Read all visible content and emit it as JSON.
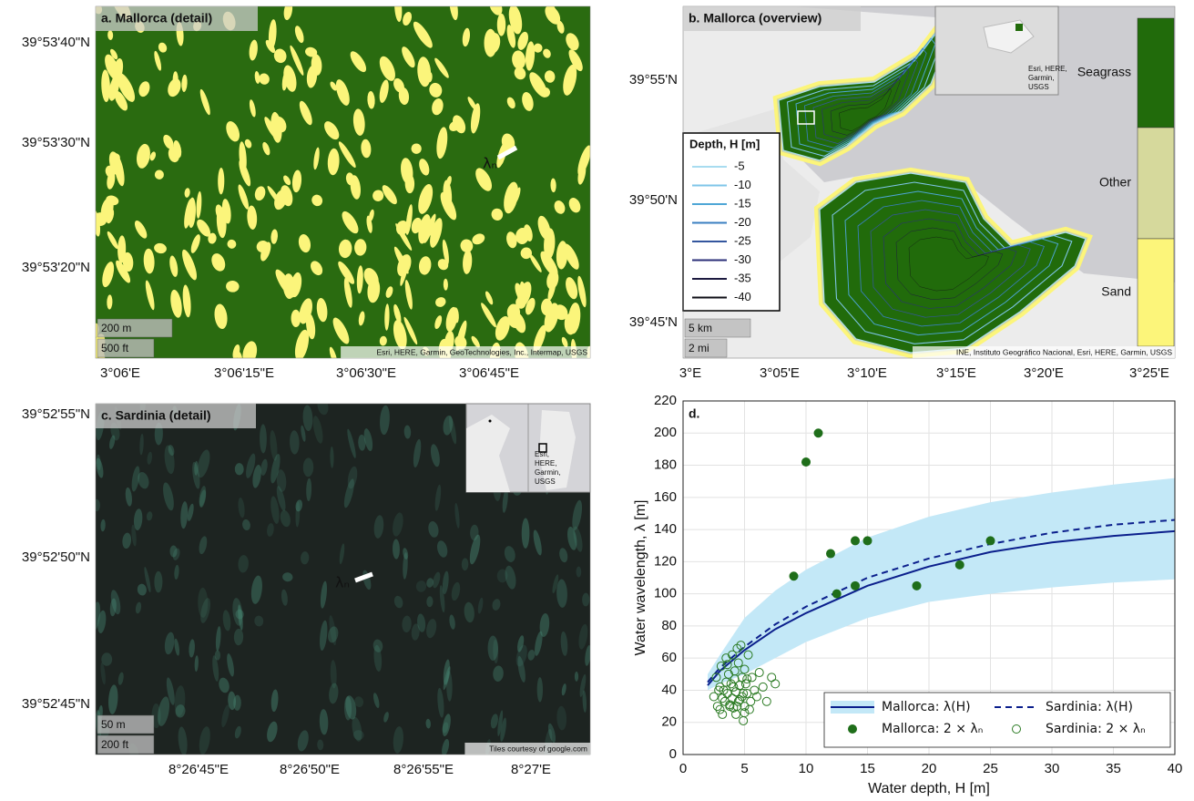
{
  "maps": [
    {
      "title": "a. Mallorca (detail)",
      "lat_labels": [
        "39°53'40\"N",
        "39°53'30\"N",
        "39°53'20\"N"
      ],
      "lon_labels": [
        "3°06'E",
        "3°06'15\"E",
        "3°06'30\"E",
        "3°06'45\"E"
      ],
      "scale_bar": [
        "200 m",
        "500 ft"
      ],
      "attribution": "Esri, HERE, Garmin, GeoTechnologies, Inc., Intermap, USGS",
      "marker": "λₙ"
    },
    {
      "title": "b. Mallorca (overview)",
      "lat_labels": [
        "39°55'N",
        "39°50'N",
        "39°45'N"
      ],
      "lon_labels": [
        "3°E",
        "3°05'E",
        "3°10'E",
        "3°15'E",
        "3°20'E",
        "3°25'E"
      ],
      "scale_bar": [
        "5 km",
        "2 mi"
      ],
      "attribution": "INE, Instituto Geográfico Nacional, Esri, HERE, Garmin, USGS",
      "inset_attribution": [
        "Esri, HERE,",
        "Garmin,",
        "USGS"
      ],
      "depth_legend": {
        "title": "Depth, H [m]",
        "levels": [
          -5,
          -10,
          -15,
          -20,
          -25,
          -30,
          -35,
          -40
        ],
        "colors": [
          "#a8dcf0",
          "#7fc6e8",
          "#4ea6d6",
          "#3a7fc0",
          "#34569e",
          "#2b2f78",
          "#1c1a3f",
          "#0e0e16"
        ]
      },
      "classes": [
        {
          "name": "Seagrass",
          "color": "#216b0b"
        },
        {
          "name": "Other",
          "color": "#d6d99c"
        },
        {
          "name": "Sand",
          "color": "#fcf57a"
        }
      ]
    },
    {
      "title": "c. Sardinia (detail)",
      "lat_labels": [
        "39°52'55\"N",
        "39°52'50\"N",
        "39°52'45\"N"
      ],
      "lon_labels": [
        "8°26'45\"E",
        "8°26'50\"E",
        "8°26'55\"E",
        "8°27'E"
      ],
      "scale_bar": [
        "50 m",
        "200 ft"
      ],
      "attribution": "Tiles courtesy of google.com",
      "inset_attribution": [
        "Esri,",
        "HERE,",
        "Garmin,",
        "USGS"
      ],
      "marker": "λₙ"
    }
  ],
  "chart_data": {
    "type": "scatter",
    "title": "d.",
    "x_label": "Water depth, H [m]",
    "y_label": "Water wavelength, λ [m]",
    "xlim": [
      0,
      40
    ],
    "xticks": [
      0,
      5,
      10,
      15,
      20,
      25,
      30,
      35,
      40
    ],
    "ylim": [
      0,
      220
    ],
    "yticks": [
      0,
      20,
      40,
      60,
      80,
      100,
      120,
      140,
      160,
      180,
      200,
      220
    ],
    "grid": true,
    "legend": "lower right",
    "series": [
      {
        "name": "Mallorca: λ(H)",
        "type": "line",
        "dash": "solid",
        "color": "#0b1f8c",
        "x": [
          2,
          3,
          5,
          7.5,
          10,
          15,
          20,
          25,
          30,
          35,
          40
        ],
        "values": [
          43,
          52,
          65,
          78,
          88,
          105,
          117,
          126,
          132,
          136,
          139
        ],
        "band": {
          "color": "#c3e8f7",
          "lower": [
            40,
            44,
            50,
            60,
            70,
            85,
            95,
            100,
            104,
            107,
            109
          ],
          "upper": [
            50,
            62,
            85,
            102,
            115,
            135,
            148,
            157,
            163,
            168,
            172
          ]
        }
      },
      {
        "name": "Sardinia: λ(H)",
        "type": "line",
        "dash": "dashed",
        "color": "#0b1f8c",
        "x": [
          2,
          3,
          5,
          7.5,
          10,
          15,
          20,
          25,
          30,
          35,
          40
        ],
        "values": [
          45,
          54,
          67,
          81,
          92,
          110,
          122,
          131,
          138,
          143,
          146
        ]
      },
      {
        "name": "Mallorca: 2 × λₙ",
        "type": "scatter",
        "filled": true,
        "color": "#1f6e1a",
        "x": [
          9,
          10,
          11,
          12,
          12.5,
          14,
          14,
          15,
          19,
          22.5,
          25
        ],
        "values": [
          111,
          182,
          200,
          125,
          100,
          133,
          105,
          133,
          105,
          118,
          133
        ]
      },
      {
        "name": "Sardinia: 2 × λₙ",
        "type": "scatter",
        "filled": false,
        "color": "#2a7a22",
        "x": [
          2.5,
          2.7,
          2.8,
          3.0,
          3.0,
          3.1,
          3.2,
          3.3,
          3.4,
          3.5,
          3.5,
          3.6,
          3.7,
          3.8,
          3.9,
          4.0,
          4.0,
          4.1,
          4.2,
          4.2,
          4.3,
          4.4,
          4.5,
          4.5,
          4.6,
          4.7,
          4.8,
          4.8,
          4.9,
          5.0,
          5.0,
          5.1,
          5.2,
          5.3,
          5.4,
          5.5,
          5.6,
          5.8,
          6.0,
          6.2,
          6.5,
          6.8,
          7.2,
          7.5,
          3.2,
          3.8,
          4.3,
          4.6,
          5.0,
          2.9,
          3.6,
          4.1,
          4.4,
          4.9,
          5.2
        ],
        "values": [
          36,
          48,
          30,
          42,
          28,
          55,
          35,
          40,
          33,
          45,
          60,
          38,
          50,
          31,
          44,
          35,
          62,
          29,
          47,
          52,
          39,
          66,
          33,
          57,
          43,
          68,
          36,
          48,
          21,
          30,
          53,
          44,
          38,
          62,
          28,
          33,
          48,
          40,
          36,
          51,
          42,
          33,
          48,
          44,
          25,
          30,
          25,
          34,
          26,
          40,
          56,
          42,
          30,
          38,
          47
        ]
      }
    ]
  }
}
